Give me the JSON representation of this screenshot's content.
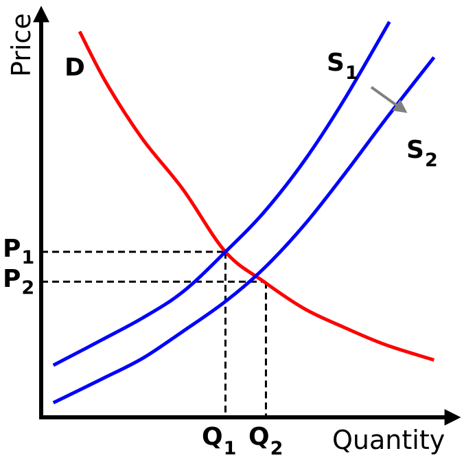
{
  "chart_data": {
    "type": "line",
    "xlabel": "Quantity",
    "ylabel": "Price",
    "xlim": [
      0,
      10
    ],
    "ylim": [
      0,
      10
    ],
    "grid": false,
    "series": [
      {
        "name": "D",
        "color": "#ff0000",
        "points": [
          [
            0.95,
            9.56
          ],
          [
            1.6,
            8.3
          ],
          [
            2.5,
            6.9
          ],
          [
            3.5,
            5.65
          ],
          [
            4.55,
            4.1
          ],
          [
            5.5,
            3.36
          ],
          [
            6.5,
            2.69
          ],
          [
            7.5,
            2.22
          ],
          [
            8.5,
            1.8
          ],
          [
            9.7,
            1.42
          ]
        ]
      },
      {
        "name": "S1",
        "color": "#0000ff",
        "points": [
          [
            0.3,
            1.29
          ],
          [
            1.5,
            1.92
          ],
          [
            2.5,
            2.46
          ],
          [
            3.5,
            3.11
          ],
          [
            4.55,
            4.1
          ],
          [
            5.5,
            5.08
          ],
          [
            6.5,
            6.36
          ],
          [
            7.5,
            7.9
          ],
          [
            8.6,
            9.8
          ]
        ]
      },
      {
        "name": "S2",
        "color": "#0000ff",
        "points": [
          [
            0.3,
            0.36
          ],
          [
            1.5,
            0.95
          ],
          [
            2.5,
            1.46
          ],
          [
            3.5,
            2.13
          ],
          [
            4.55,
            2.87
          ],
          [
            5.5,
            3.69
          ],
          [
            6.5,
            4.77
          ],
          [
            7.5,
            6.04
          ],
          [
            8.5,
            7.38
          ],
          [
            9.7,
            8.92
          ]
        ]
      }
    ],
    "equilibria": [
      {
        "q_label": "Q",
        "q_sub": "1",
        "p_label": "P",
        "p_sub": "1",
        "q": 4.55,
        "p": 4.1
      },
      {
        "q_label": "Q",
        "q_sub": "2",
        "p_label": "P",
        "p_sub": "2",
        "q": 5.55,
        "p": 3.36
      }
    ],
    "curve_labels": [
      {
        "series": "D",
        "text": "D",
        "sub": ""
      },
      {
        "series": "S1",
        "text": "S",
        "sub": "1"
      },
      {
        "series": "S2",
        "text": "S",
        "sub": "2"
      }
    ],
    "shift_arrow": {
      "from": "S1",
      "to": "S2",
      "color": "#808080"
    },
    "axis_color": "#000000"
  }
}
